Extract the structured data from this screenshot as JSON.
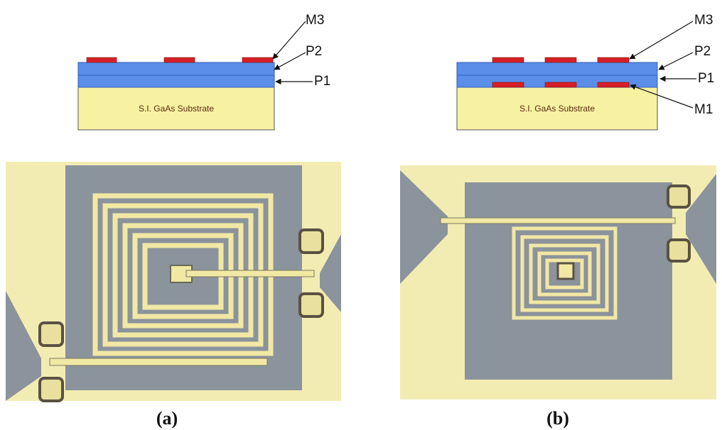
{
  "panel_a": {
    "caption": "(a)",
    "substrate_label": "S.I. GaAs Substrate",
    "layer_labels": [
      "M3",
      "P2",
      "P1"
    ]
  },
  "panel_b": {
    "caption": "(b)",
    "substrate_label": "S.I. GaAs Substrate",
    "layer_labels": [
      "M3",
      "P2",
      "P1",
      "M1"
    ]
  },
  "colors": {
    "metal": "#d81f26",
    "polyimide": "#5b8ee8",
    "substrate": "#f7f1a2",
    "chip_background": "#f2ecb2",
    "ground_plane": "#8b939c",
    "spiral_metal": "#f1e8a4"
  }
}
